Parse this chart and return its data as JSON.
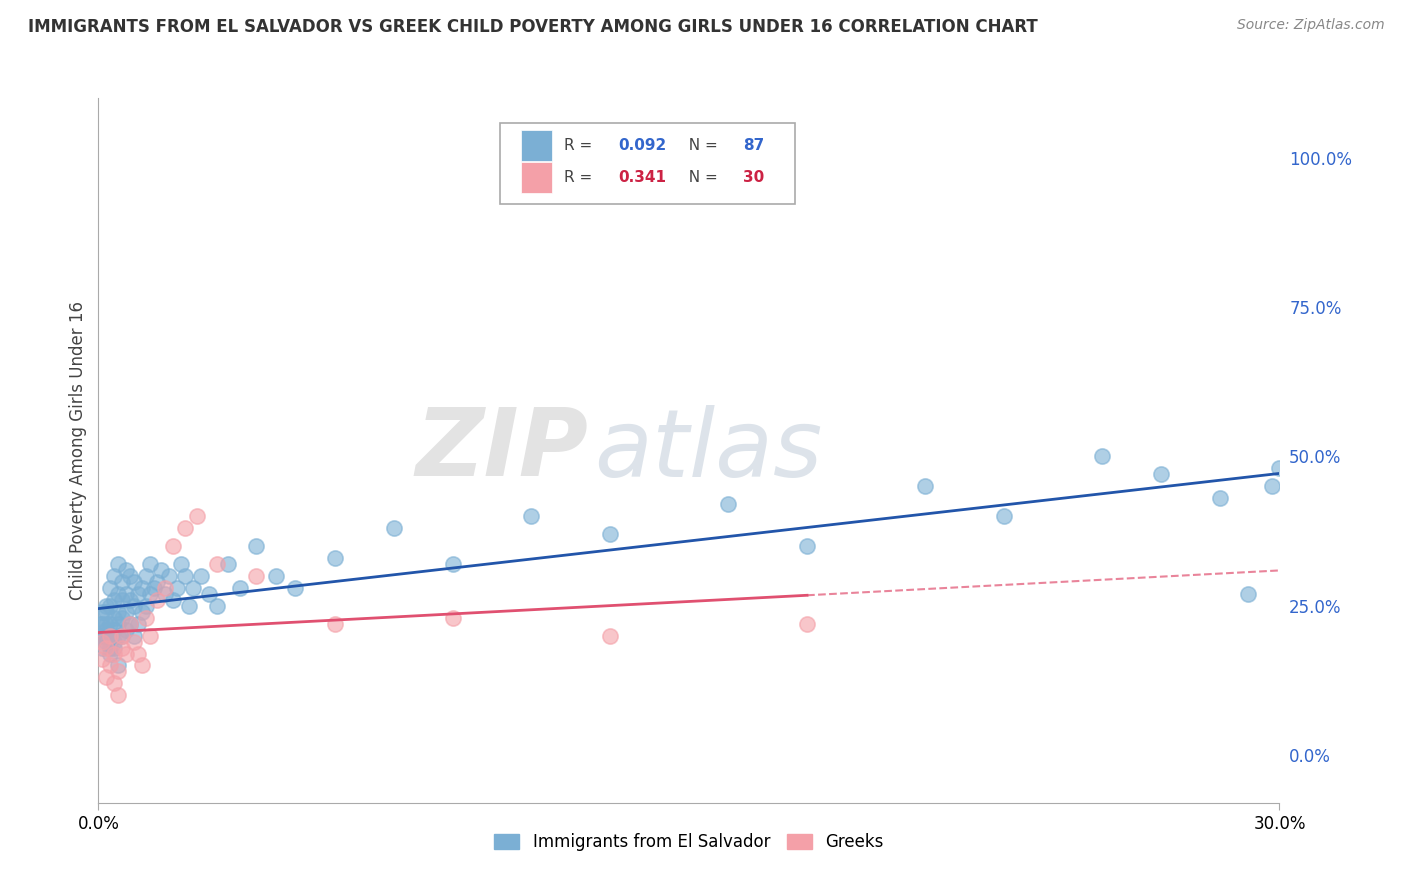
{
  "title": "IMMIGRANTS FROM EL SALVADOR VS GREEK CHILD POVERTY AMONG GIRLS UNDER 16 CORRELATION CHART",
  "source": "Source: ZipAtlas.com",
  "ylabel": "Child Poverty Among Girls Under 16",
  "legend1_label": "Immigrants from El Salvador",
  "legend2_label": "Greeks",
  "R_blue": 0.092,
  "N_blue": 87,
  "R_pink": 0.341,
  "N_pink": 30,
  "blue_color": "#7BAFD4",
  "pink_color": "#F4A0A8",
  "trend_blue_color": "#2255AA",
  "trend_pink_color": "#E05070",
  "xlim": [
    0.0,
    0.3
  ],
  "ylim": [
    -0.08,
    1.1
  ],
  "y_ticks_right": [
    0.0,
    0.25,
    0.5,
    0.75,
    1.0
  ],
  "y_tick_labels_right": [
    "0.0%",
    "25.0%",
    "50.0%",
    "75.0%",
    "100.0%"
  ],
  "background_color": "#FFFFFF",
  "grid_color": "#CCCCCC",
  "watermark_zip": "ZIP",
  "watermark_atlas": "atlas",
  "blue_scatter_x": [
    0.0005,
    0.001,
    0.001,
    0.001,
    0.001,
    0.002,
    0.002,
    0.002,
    0.002,
    0.002,
    0.002,
    0.003,
    0.003,
    0.003,
    0.003,
    0.003,
    0.003,
    0.004,
    0.004,
    0.004,
    0.004,
    0.004,
    0.004,
    0.005,
    0.005,
    0.005,
    0.005,
    0.005,
    0.005,
    0.006,
    0.006,
    0.006,
    0.006,
    0.007,
    0.007,
    0.007,
    0.007,
    0.008,
    0.008,
    0.008,
    0.009,
    0.009,
    0.009,
    0.01,
    0.01,
    0.011,
    0.011,
    0.012,
    0.012,
    0.013,
    0.013,
    0.014,
    0.015,
    0.016,
    0.017,
    0.018,
    0.019,
    0.02,
    0.021,
    0.022,
    0.023,
    0.024,
    0.026,
    0.028,
    0.03,
    0.033,
    0.036,
    0.04,
    0.045,
    0.05,
    0.06,
    0.075,
    0.09,
    0.11,
    0.13,
    0.16,
    0.18,
    0.21,
    0.23,
    0.255,
    0.27,
    0.285,
    0.292,
    0.298,
    0.3,
    0.305,
    0.31
  ],
  "blue_scatter_y": [
    0.22,
    0.2,
    0.22,
    0.24,
    0.18,
    0.2,
    0.22,
    0.25,
    0.19,
    0.21,
    0.24,
    0.18,
    0.2,
    0.22,
    0.25,
    0.17,
    0.28,
    0.19,
    0.21,
    0.23,
    0.26,
    0.18,
    0.3,
    0.2,
    0.22,
    0.24,
    0.27,
    0.15,
    0.32,
    0.2,
    0.23,
    0.26,
    0.29,
    0.21,
    0.24,
    0.27,
    0.31,
    0.22,
    0.26,
    0.3,
    0.2,
    0.25,
    0.29,
    0.22,
    0.27,
    0.24,
    0.28,
    0.25,
    0.3,
    0.27,
    0.32,
    0.28,
    0.29,
    0.31,
    0.27,
    0.3,
    0.26,
    0.28,
    0.32,
    0.3,
    0.25,
    0.28,
    0.3,
    0.27,
    0.25,
    0.32,
    0.28,
    0.35,
    0.3,
    0.28,
    0.33,
    0.38,
    0.32,
    0.4,
    0.37,
    0.42,
    0.35,
    0.45,
    0.4,
    0.5,
    0.47,
    0.43,
    0.27,
    0.45,
    0.48,
    0.5,
    0.48
  ],
  "pink_scatter_x": [
    0.001,
    0.001,
    0.002,
    0.002,
    0.003,
    0.003,
    0.004,
    0.004,
    0.005,
    0.005,
    0.006,
    0.006,
    0.007,
    0.008,
    0.009,
    0.01,
    0.011,
    0.012,
    0.013,
    0.015,
    0.017,
    0.019,
    0.022,
    0.025,
    0.03,
    0.04,
    0.06,
    0.09,
    0.13,
    0.18
  ],
  "pink_scatter_y": [
    0.19,
    0.16,
    0.18,
    0.13,
    0.2,
    0.15,
    0.17,
    0.12,
    0.14,
    0.1,
    0.18,
    0.2,
    0.17,
    0.22,
    0.19,
    0.17,
    0.15,
    0.23,
    0.2,
    0.26,
    0.28,
    0.35,
    0.38,
    0.4,
    0.32,
    0.3,
    0.22,
    0.23,
    0.2,
    0.22
  ]
}
